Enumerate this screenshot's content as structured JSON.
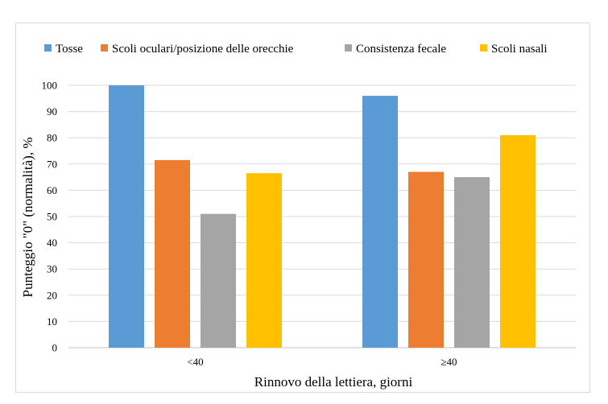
{
  "chart_data": {
    "type": "bar",
    "title": "",
    "xlabel": "Rinnovo della lettiera, giorni",
    "ylabel": "Punteggio \"0\" (normalità), %",
    "categories": [
      "<40",
      "≥40"
    ],
    "ylim": [
      0,
      100
    ],
    "yticks": [
      0,
      10,
      20,
      30,
      40,
      50,
      60,
      70,
      80,
      90,
      100
    ],
    "grid": true,
    "legend_position": "top",
    "series": [
      {
        "name": "Tosse",
        "color": "#5b9bd5",
        "values": [
          100,
          96
        ]
      },
      {
        "name": "Scoli oculari/posizione delle orecchie",
        "color": "#ed7d31",
        "values": [
          71.5,
          67
        ]
      },
      {
        "name": "Consistenza fecale",
        "color": "#a5a5a5",
        "values": [
          51,
          65
        ]
      },
      {
        "name": "Scoli nasali",
        "color": "#ffc000",
        "values": [
          66.5,
          81
        ]
      }
    ]
  }
}
